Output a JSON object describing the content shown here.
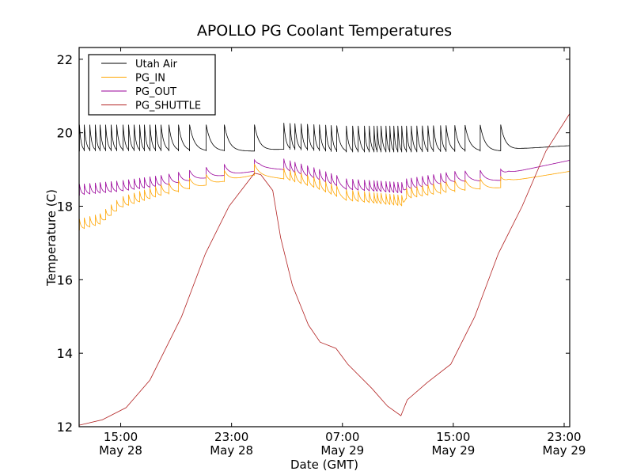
{
  "chart_data": {
    "type": "line",
    "title": "APOLLO PG Coolant Temperatures",
    "xlabel": "Date (GMT)",
    "ylabel": "Temperature (C)",
    "x_units": "hours since 12:00 May 28 (GMT)",
    "xlim": [
      0,
      35.4
    ],
    "ylim": [
      12,
      22.32
    ],
    "yticks": [
      12,
      14,
      16,
      18,
      20,
      22
    ],
    "xticks": [
      {
        "value": 3,
        "label1": "15:00",
        "label2": "May 28"
      },
      {
        "value": 11,
        "label1": "23:00",
        "label2": "May 28"
      },
      {
        "value": 19,
        "label1": "07:00",
        "label2": "May 29"
      },
      {
        "value": 27,
        "label1": "15:00",
        "label2": "May 29"
      },
      {
        "value": 35,
        "label1": "23:00",
        "label2": "May 29"
      }
    ],
    "grid": false,
    "legend_position": "top-left",
    "spike_times": [
      0.02,
      0.37,
      0.77,
      1.17,
      1.51,
      1.91,
      2.31,
      2.71,
      3.17,
      3.57,
      3.97,
      4.37,
      4.71,
      5.11,
      5.51,
      5.91,
      6.48,
      7.17,
      7.97,
      9.17,
      10.48,
      12.65,
      14.77,
      15.22,
      15.57,
      16.02,
      16.48,
      16.94,
      17.34,
      17.79,
      18.19,
      18.59,
      19.28,
      19.74,
      20.14,
      20.59,
      20.94,
      21.28,
      21.51,
      21.79,
      22.14,
      22.42,
      22.71,
      23.0,
      23.28,
      23.62,
      23.97,
      24.37,
      24.77,
      25.17,
      25.57,
      26.08,
      26.48,
      27.11,
      27.85,
      28.94,
      30.42
    ],
    "series": [
      {
        "name": "Utah Air",
        "color": "#000000",
        "amplitude": 0.72,
        "baseline": [
          [
            0,
            19.5
          ],
          [
            12.6,
            19.5
          ],
          [
            14.7,
            19.55
          ],
          [
            19,
            19.47
          ],
          [
            24,
            19.47
          ],
          [
            30.4,
            19.5
          ],
          [
            32,
            19.57
          ],
          [
            35.4,
            19.65
          ]
        ]
      },
      {
        "name": "PG_IN",
        "color": "#ffa500",
        "amplitude": 0.3,
        "baseline": [
          [
            0,
            17.35
          ],
          [
            1.5,
            17.5
          ],
          [
            3,
            17.95
          ],
          [
            6,
            18.3
          ],
          [
            9,
            18.55
          ],
          [
            12.6,
            18.85
          ],
          [
            14.7,
            18.75
          ],
          [
            17,
            18.5
          ],
          [
            19.3,
            18.15
          ],
          [
            23.4,
            18.0
          ],
          [
            23.6,
            18.2
          ],
          [
            27,
            18.4
          ],
          [
            30.4,
            18.5
          ],
          [
            31,
            18.68
          ],
          [
            35.4,
            18.95
          ]
        ]
      },
      {
        "name": "PG_OUT",
        "color": "#990099",
        "amplitude": 0.3,
        "baseline": [
          [
            0,
            18.3
          ],
          [
            3,
            18.4
          ],
          [
            6,
            18.55
          ],
          [
            9,
            18.75
          ],
          [
            12.6,
            18.95
          ],
          [
            13,
            19.05
          ],
          [
            14.7,
            19.0
          ],
          [
            17,
            18.75
          ],
          [
            19.3,
            18.45
          ],
          [
            23.4,
            18.35
          ],
          [
            23.6,
            18.45
          ],
          [
            27,
            18.65
          ],
          [
            30.4,
            18.7
          ],
          [
            31,
            18.9
          ],
          [
            35.4,
            19.25
          ]
        ]
      },
      {
        "name": "PG_SHUTTLE",
        "color": "#b22222",
        "amplitude": 0,
        "points": [
          [
            0,
            12.04
          ],
          [
            1.68,
            12.19
          ],
          [
            3.39,
            12.52
          ],
          [
            5.11,
            13.27
          ],
          [
            7.39,
            14.99
          ],
          [
            9.11,
            16.71
          ],
          [
            10.82,
            18.0
          ],
          [
            12.65,
            18.9
          ],
          [
            13.11,
            18.86
          ],
          [
            13.97,
            18.43
          ],
          [
            14.54,
            17.14
          ],
          [
            15.39,
            15.85
          ],
          [
            16.54,
            14.77
          ],
          [
            17.39,
            14.3
          ],
          [
            18.54,
            14.13
          ],
          [
            19.39,
            13.7
          ],
          [
            21.11,
            13.05
          ],
          [
            22.25,
            12.56
          ],
          [
            23.22,
            12.3
          ],
          [
            23.68,
            12.73
          ],
          [
            25.11,
            13.2
          ],
          [
            26.82,
            13.7
          ],
          [
            28.54,
            14.99
          ],
          [
            30.25,
            16.71
          ],
          [
            31.97,
            18.0
          ],
          [
            33.68,
            19.5
          ],
          [
            35.4,
            20.52
          ]
        ]
      }
    ]
  }
}
